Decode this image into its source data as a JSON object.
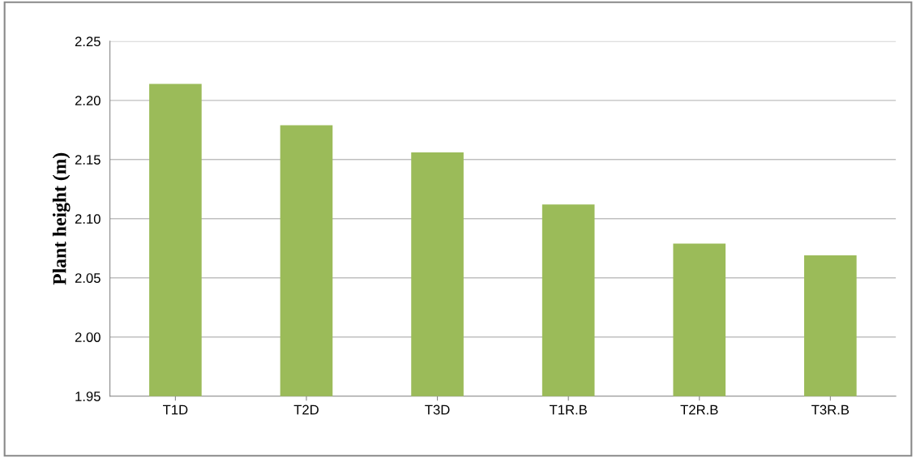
{
  "chart_data": {
    "type": "bar",
    "ylabel": "Plant height (m)",
    "categories": [
      "T1D",
      "T2D",
      "T3D",
      "T1R.B",
      "T2R.B",
      "T3R.B"
    ],
    "values": [
      2.214,
      2.179,
      2.156,
      2.112,
      2.079,
      2.069
    ],
    "color": "#9bbb59",
    "ylim": [
      1.95,
      2.25
    ],
    "yticks": [
      1.95,
      {
        "value": 2.0,
        "label": "2.00"
      },
      2.05,
      {
        "value": 2.1,
        "label": "2.10"
      },
      2.15,
      {
        "value": 2.2,
        "label": "2.20"
      },
      2.25
    ],
    "grid": "y",
    "legend": false
  }
}
